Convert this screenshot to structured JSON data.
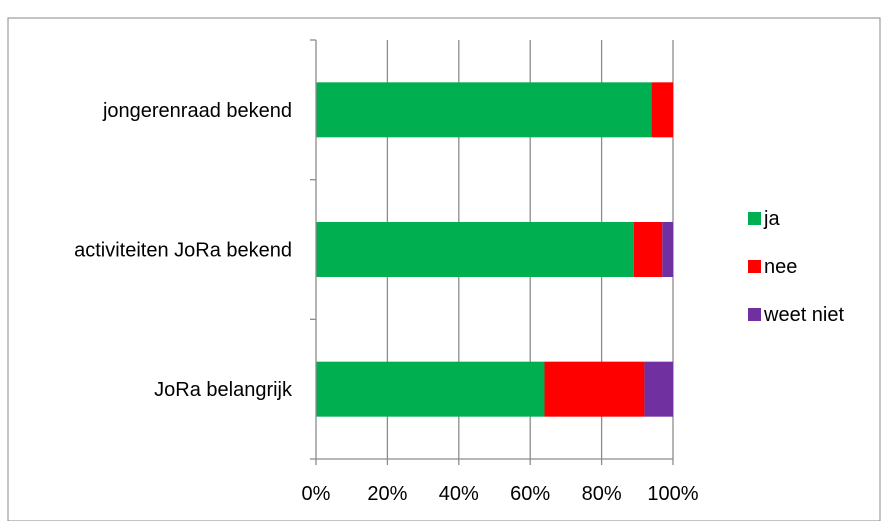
{
  "chart_data": {
    "type": "bar",
    "orientation": "horizontal",
    "stacked": "percent",
    "categories": [
      "jongerenraad bekend",
      "activiteiten JoRa bekend",
      "JoRa belangrijk"
    ],
    "series": [
      {
        "name": "ja",
        "color": "#00b050",
        "values": [
          94,
          89,
          64
        ]
      },
      {
        "name": "nee",
        "color": "#ff0000",
        "values": [
          6,
          8,
          28
        ]
      },
      {
        "name": "weet niet",
        "color": "#7030a0",
        "values": [
          0,
          3,
          8
        ]
      }
    ],
    "x_ticks": [
      "0%",
      "20%",
      "40%",
      "60%",
      "80%",
      "100%"
    ],
    "xlim": [
      0,
      100
    ],
    "grid": "vertical",
    "legend_position": "right"
  }
}
